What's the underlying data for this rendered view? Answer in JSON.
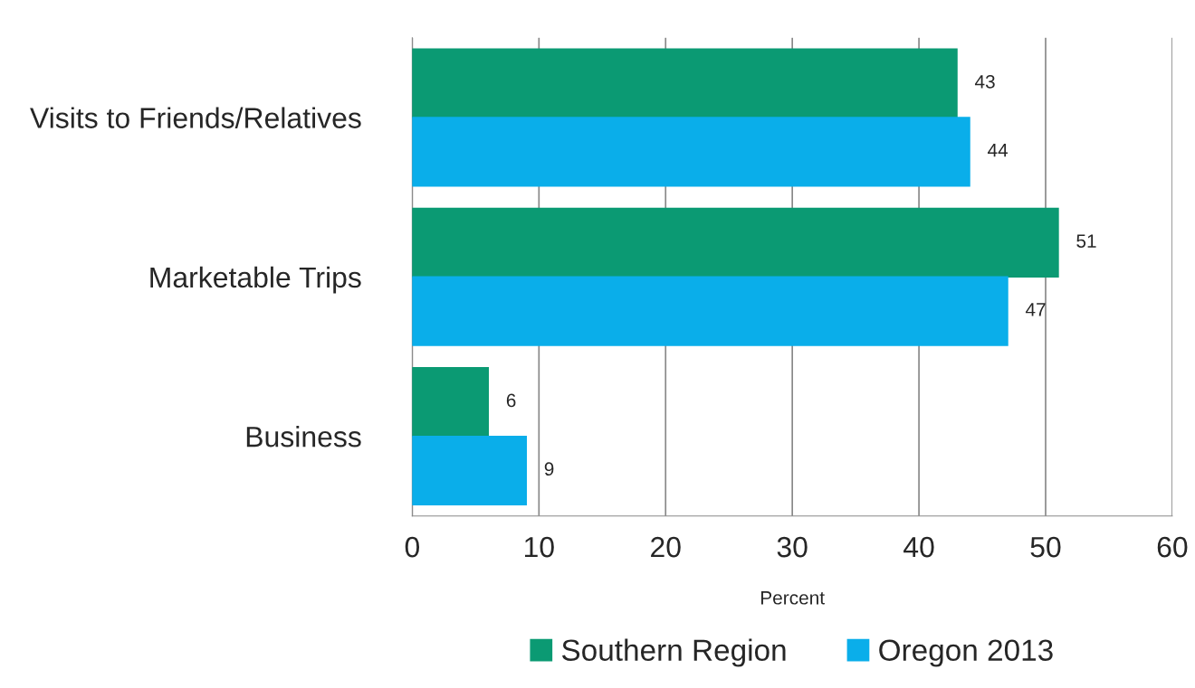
{
  "chart_data": {
    "type": "bar",
    "orientation": "horizontal",
    "xlabel": "Percent",
    "categories": [
      "Visits to Friends/Relatives",
      "Marketable Trips",
      "Business"
    ],
    "series": [
      {
        "name": "Southern Region",
        "color": "#0b9a73",
        "values": [
          43,
          51,
          6
        ]
      },
      {
        "name": "Oregon 2013",
        "color": "#0aaeea",
        "values": [
          44,
          47,
          9
        ]
      }
    ],
    "xlim": [
      0,
      60
    ],
    "xticks": [
      0,
      10,
      20,
      30,
      40,
      50,
      60
    ],
    "grid": "x",
    "legend": "bottom",
    "data_labels": true
  }
}
